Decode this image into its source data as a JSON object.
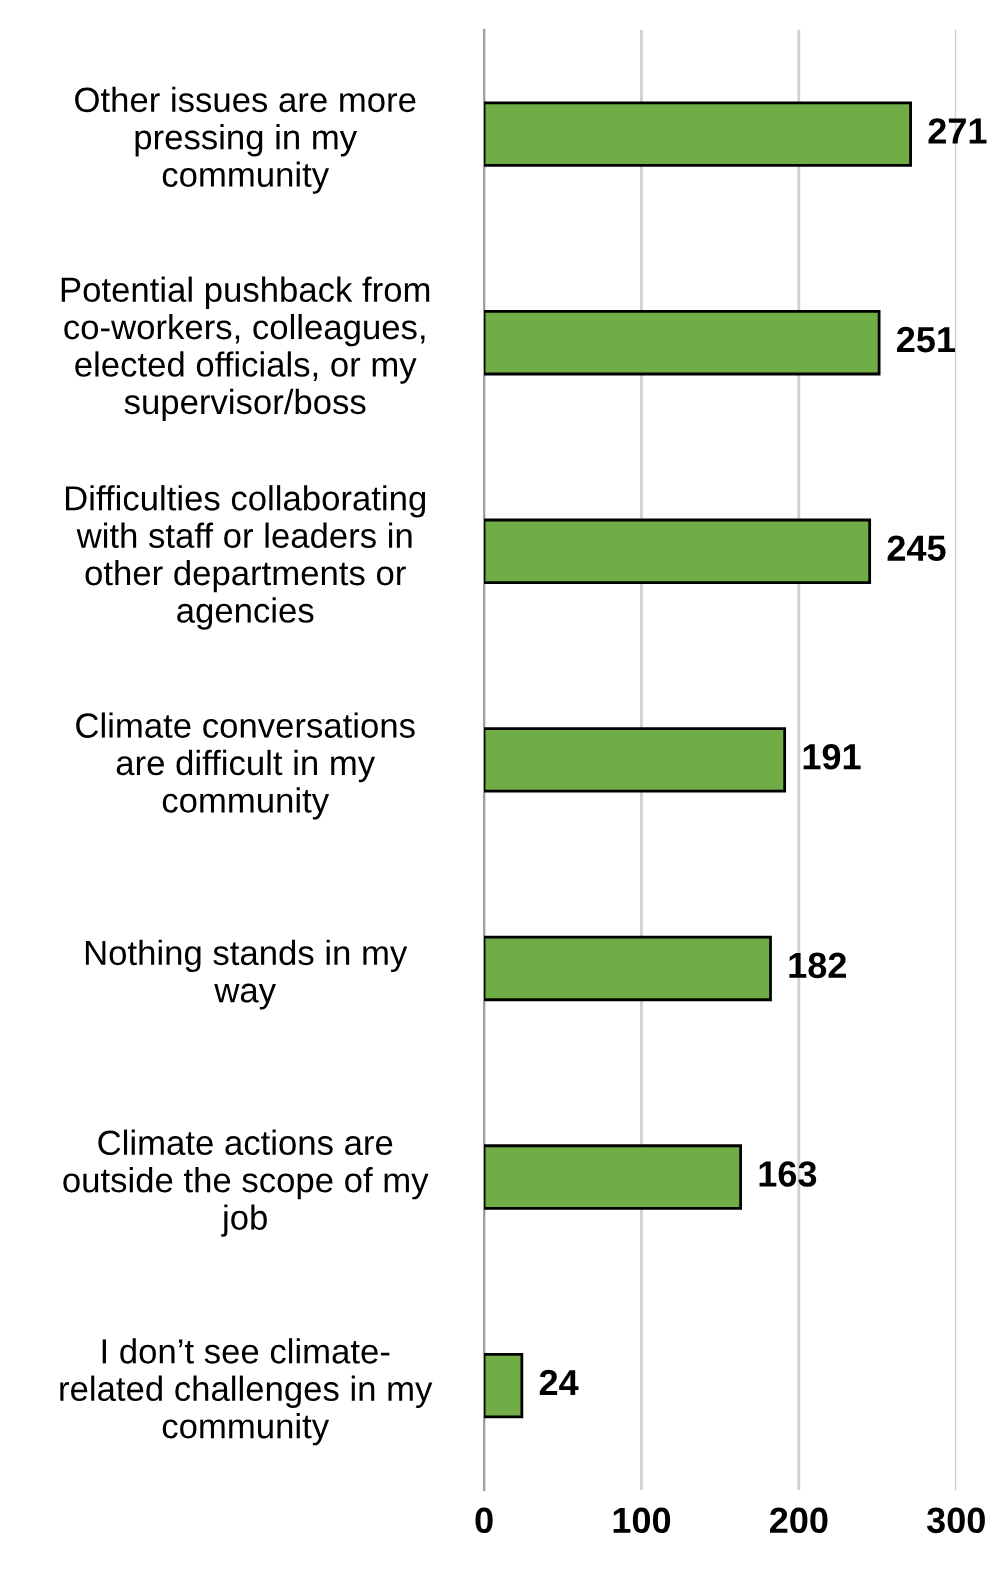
{
  "chart_data": {
    "type": "bar",
    "orientation": "horizontal",
    "categories": [
      "Other issues are more\npressing in my\ncommunity",
      "Potential pushback from\nco-workers, colleagues,\nelected officials, or my\nsupervisor/boss",
      "Difficulties collaborating\nwith staff or leaders in\nother departments or\nagencies",
      "Climate conversations\nare difficult in my\ncommunity",
      "Nothing stands in my\nway",
      "Climate actions are\noutside the scope of my\njob",
      "I don’t see climate-\nrelated challenges in my\ncommunity"
    ],
    "values": [
      271,
      251,
      245,
      191,
      182,
      163,
      24
    ],
    "color": "#70ad47",
    "xlim": [
      0,
      300
    ],
    "xticks": [
      0,
      100,
      200,
      300
    ],
    "grid": "x",
    "data_labels": true
  }
}
